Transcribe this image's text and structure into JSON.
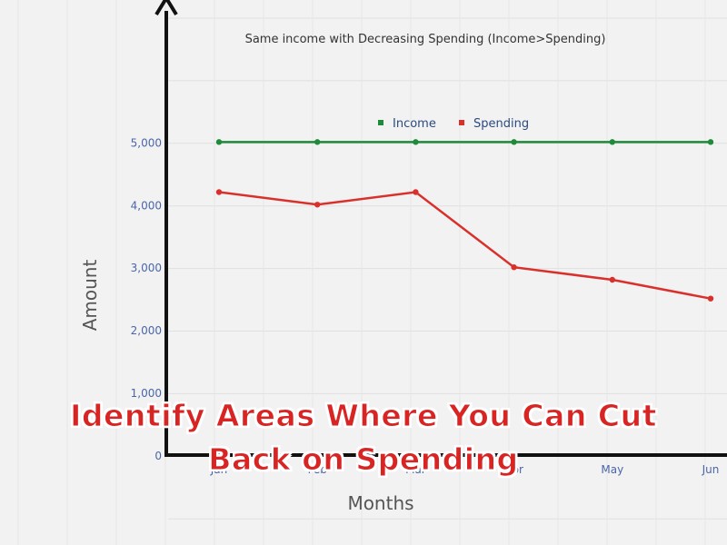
{
  "chart_data": {
    "type": "line",
    "title": "Same income with Decreasing Spending (Income>Spending)",
    "xlabel": "Months",
    "ylabel": "Amount",
    "categories": [
      "Jan",
      "Feb",
      "Mar",
      "Apr",
      "May",
      "Jun"
    ],
    "series": [
      {
        "name": "Income",
        "color": "#1f8a3a",
        "values": [
          5000,
          5000,
          5000,
          5000,
          5000,
          5000
        ]
      },
      {
        "name": "Spending",
        "color": "#d9302c",
        "values": [
          4200,
          4000,
          4200,
          3000,
          2800,
          2500
        ]
      }
    ],
    "ylim": [
      0,
      5000
    ],
    "yticks": [
      "0",
      "1,000",
      "2,000",
      "3,000",
      "4,000",
      "5,000"
    ],
    "grid": true,
    "legend": "top-center"
  },
  "overlay": {
    "line1": "Identify Areas Where You Can Cut",
    "line2": "Back on Spending"
  }
}
